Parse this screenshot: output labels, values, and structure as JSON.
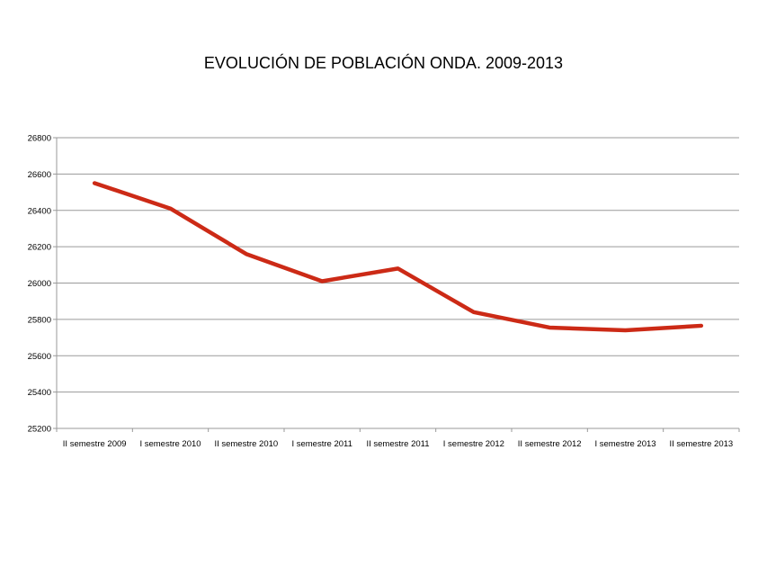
{
  "chart_data": {
    "type": "line",
    "title": "EVOLUCIÓN DE POBLACIÓN ONDA. 2009-2013",
    "xlabel": "",
    "ylabel": "",
    "categories": [
      "II semestre 2009",
      "I semestre 2010",
      "II semestre 2010",
      "I semestre 2011",
      "II semestre 2011",
      "I semestre 2012",
      "II semestre 2012",
      "I semestre 2013",
      "II semestre 2013"
    ],
    "series": [
      {
        "values": [
          26550,
          26410,
          26160,
          26010,
          26080,
          25840,
          25755,
          25740,
          25765
        ]
      }
    ],
    "ylim": [
      25200,
      26800
    ],
    "yticks": [
      25200,
      25400,
      25600,
      25800,
      26000,
      26200,
      26400,
      26600,
      26800
    ],
    "grid": true,
    "legend": "none",
    "colors": {
      "line": "#cc2a16",
      "grid": "#9a9a9a",
      "axis": "#9a9a9a"
    }
  }
}
